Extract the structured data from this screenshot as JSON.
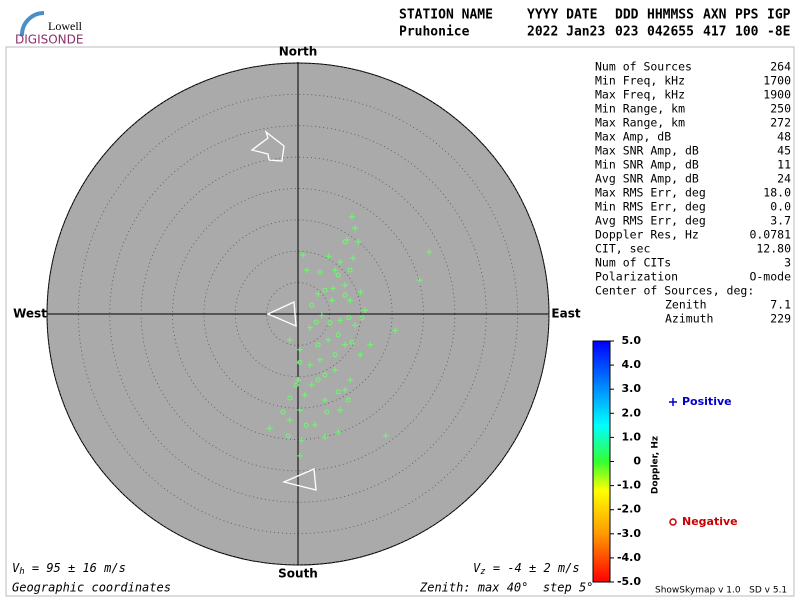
{
  "logo": {
    "top": "Lowell",
    "bottom": "DIGISONDE"
  },
  "header": {
    "columns": [
      {
        "name": "STATION NAME",
        "value": "Pruhonice"
      },
      {
        "name": "YYYY DATE",
        "value": "2022 Jan23"
      },
      {
        "name": "DDD",
        "value": "023"
      },
      {
        "name": "HHMMSS",
        "value": "042655"
      },
      {
        "name": "AXN",
        "value": "417"
      },
      {
        "name": "PPS",
        "value": "100"
      },
      {
        "name": "IGP",
        "value": "-8E"
      }
    ]
  },
  "stats": [
    [
      "Num of Sources",
      "264"
    ],
    [
      "Min Freq, kHz",
      "1700"
    ],
    [
      "Max Freq, kHz",
      "1900"
    ],
    [
      "Min Range, km",
      "250"
    ],
    [
      "Max Range, km",
      "272"
    ],
    [
      "Max Amp, dB",
      "48"
    ],
    [
      "Max SNR Amp, dB",
      "45"
    ],
    [
      "Min SNR Amp, dB",
      "11"
    ],
    [
      "Avg SNR Amp, dB",
      "24"
    ],
    [
      "Max RMS Err, deg",
      "18.0"
    ],
    [
      "Min RMS Err, deg",
      "0.0"
    ],
    [
      "Avg RMS Err, deg",
      "3.7"
    ],
    [
      "Doppler Res, Hz",
      "0.0781"
    ],
    [
      "CIT, sec",
      "12.80"
    ],
    [
      "Num of CITs",
      "3"
    ],
    [
      "Polarization",
      "O-mode"
    ],
    [
      "Center of Sources, deg:",
      ""
    ]
  ],
  "center": [
    [
      "Zenith",
      "7.1"
    ],
    [
      "Azimuth",
      "229"
    ]
  ],
  "velocity": {
    "horizontal": {
      "symbol": "V",
      "sub": "h",
      "text": " = 95 ± 16 m/s"
    },
    "vertical": {
      "symbol": "V",
      "sub": "z",
      "text": " = -4 ± 2 m/s"
    }
  },
  "footer": {
    "coords": "Geographic coordinates",
    "zenith": "Zenith: max 40°  step 5°",
    "version": "ShowSkymap v 1.0   SD v 5.1"
  },
  "chart_data": {
    "type": "scatter",
    "directions": {
      "north": "North",
      "south": "South",
      "west": "West",
      "east": "East"
    },
    "rlim": [
      0,
      40
    ],
    "rticks": [
      5,
      10,
      15,
      20,
      25,
      30,
      35,
      40
    ],
    "series": [
      {
        "name": "Positive",
        "marker": "plus",
        "color": "#66ff66",
        "label_color": "#0000cc",
        "x": [
          8.6,
          9.1,
          9.6,
          0.8,
          20.9,
          4.9,
          7.8,
          6.7,
          8.8,
          1.4,
          3.5,
          5.9,
          19.4,
          7.5,
          3.2,
          10.0,
          5.4,
          8.3,
          10.7,
          3.8,
          6.7,
          9.1,
          15.5,
          1.9,
          4.8,
          7.5,
          0.3,
          9.9,
          3.5,
          5.9,
          0.0,
          2.2,
          7.5,
          1.1,
          4.3,
          0.3,
          6.7,
          -1.3,
          2.7,
          -4.5,
          6.4,
          4.3,
          14.0,
          0.3,
          0.6,
          8.3,
          1.9,
          11.5,
          -1.3,
          5.6
        ],
        "y": [
          15.5,
          13.7,
          11.5,
          9.4,
          9.9,
          9.2,
          11.8,
          8.3,
          8.9,
          7.0,
          6.7,
          7.0,
          5.4,
          4.6,
          3.2,
          3.5,
          2.2,
          2.2,
          0.6,
          -0.2,
          -1.0,
          -1.8,
          -2.6,
          -2.2,
          -4.1,
          -4.9,
          -5.7,
          -6.5,
          -7.3,
          -8.9,
          -10.5,
          -11.3,
          -12.1,
          -12.9,
          -13.7,
          -15.3,
          -15.3,
          -16.9,
          -17.7,
          -18.2,
          -18.8,
          -19.6,
          -19.4,
          -22.6,
          -20.1,
          -10.5,
          -8.1,
          -4.9,
          -4.1,
          4.1
        ]
      },
      {
        "name": "Negative",
        "marker": "circle",
        "color": "#66ff66",
        "label_color": "#cc0000",
        "x": [
          7.5,
          6.4,
          8.3,
          4.3,
          7.5,
          2.9,
          5.1,
          8.1,
          10.2,
          6.4,
          3.2,
          8.6,
          5.9,
          0.3,
          4.3,
          -0.3,
          3.2,
          6.4,
          -2.4,
          -1.3,
          1.3,
          -1.6,
          4.6,
          8.0,
          2.2
        ],
        "y": [
          11.5,
          6.2,
          7.0,
          3.8,
          3.0,
          -1.3,
          -1.4,
          -0.6,
          -0.6,
          -3.3,
          -4.9,
          -4.5,
          -6.5,
          -7.7,
          -9.7,
          -11.3,
          -10.5,
          -12.4,
          -15.6,
          -13.4,
          -17.7,
          -19.4,
          -15.6,
          -13.7,
          1.4
        ]
      }
    ],
    "colorbar": {
      "label": "Doppler, Hz",
      "ylim": [
        -5,
        5
      ],
      "yticks": [
        {
          "value": 5,
          "label": "5.0"
        },
        {
          "value": 4,
          "label": "4.0"
        },
        {
          "value": 3,
          "label": "3.0"
        },
        {
          "value": 2,
          "label": "2.0"
        },
        {
          "value": 1,
          "label": "1.0"
        },
        0,
        {
          "value": -1,
          "label": "-1.0"
        },
        {
          "value": -2,
          "label": "-2.0"
        },
        {
          "value": -3,
          "label": "-3.0"
        },
        {
          "value": -4,
          "label": "-4.0"
        },
        {
          "value": -5,
          "label": "-5.0"
        }
      ]
    }
  }
}
